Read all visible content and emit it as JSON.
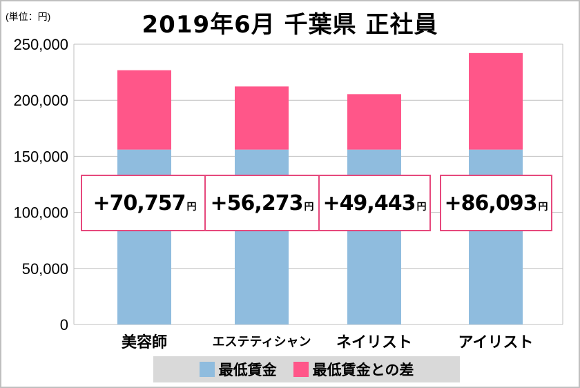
{
  "chart_data": {
    "type": "bar",
    "stacked": true,
    "title": "2019年6月 千葉県 正社員",
    "unit_label": "(単位：円)",
    "categories": [
      "美容師",
      "エステティシャン",
      "ネイリスト",
      "アイリスト"
    ],
    "series": [
      {
        "name": "最低賃金",
        "color": "#8fbcde",
        "values": [
          156000,
          156000,
          156000,
          156000
        ]
      },
      {
        "name": "最低賃金との差",
        "color": "#ff5689",
        "values": [
          70757,
          56273,
          49443,
          86093
        ]
      }
    ],
    "callouts": [
      "+70,757",
      "+56,273",
      "+49,443",
      "+86,093"
    ],
    "callout_unit": "円",
    "ylim": [
      0,
      250000
    ],
    "yticks": [
      "0",
      "50,000",
      "100,000",
      "150,000",
      "200,000",
      "250,000"
    ],
    "grid": true,
    "legend_position": "bottom"
  }
}
